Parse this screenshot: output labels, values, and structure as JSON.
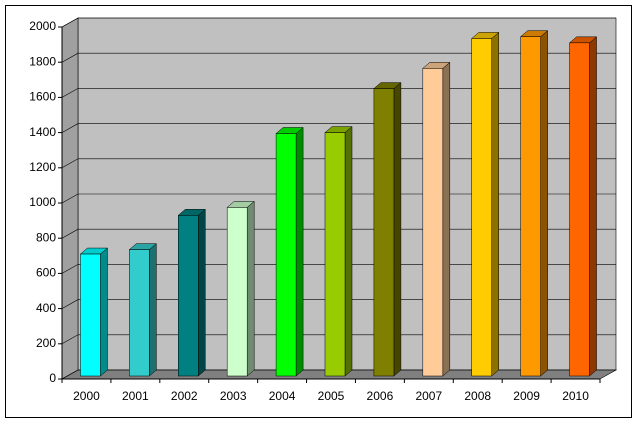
{
  "chart_data": {
    "type": "bar3d",
    "categories": [
      "2000",
      "2001",
      "2002",
      "2003",
      "2004",
      "2005",
      "2006",
      "2007",
      "2008",
      "2009",
      "2010"
    ],
    "values": [
      710,
      735,
      930,
      975,
      1395,
      1400,
      1650,
      1765,
      1935,
      1945,
      1910
    ],
    "colors": [
      "#00ffff",
      "#33cccc",
      "#008080",
      "#ccffcc",
      "#00ff00",
      "#99cc00",
      "#808000",
      "#ffcc99",
      "#ffcc00",
      "#ff9900",
      "#ff6600"
    ],
    "ylim": [
      0,
      2000
    ],
    "yticks": [
      0,
      200,
      400,
      600,
      800,
      1000,
      1200,
      1400,
      1600,
      1800,
      2000
    ],
    "grid": true
  }
}
